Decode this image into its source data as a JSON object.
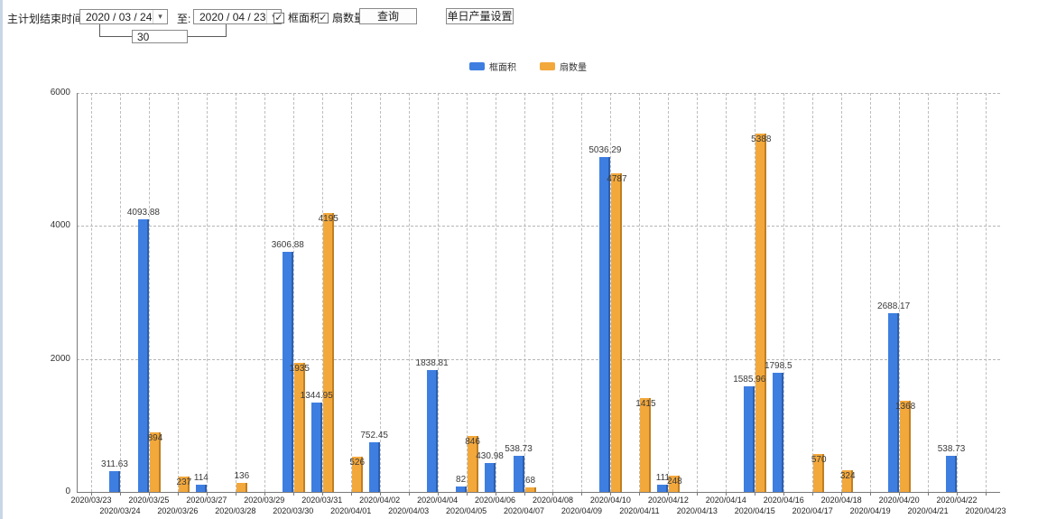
{
  "toolbar": {
    "plan_end_label": "主计划结束时间:",
    "date_from": "2020 / 03 / 24",
    "to_label": "至:",
    "date_to": "2020 / 04 / 23",
    "days_between": "30",
    "checkbox_area_label": "框面积",
    "checkbox_fan_label": "扇数量",
    "checkbox_area_checked": "✓",
    "checkbox_fan_checked": "✓",
    "dropdown_arrow": "▾",
    "query_button": "查询",
    "daily_output_button": "单日产量设置"
  },
  "legend": [
    {
      "label": "框面积",
      "color": "#3e7ee0"
    },
    {
      "label": "扇数量",
      "color": "#f3a83c"
    }
  ],
  "colors": {
    "bar_blue": "#3e7ee0",
    "bar_blue_dark": "#2c5fb0",
    "bar_orange": "#f3a83c",
    "bar_orange_dark": "#c07f22",
    "grid": "#b5b5b5",
    "axis": "#7a7a7a"
  },
  "chart_data": {
    "type": "bar",
    "title": "",
    "xlabel": "",
    "ylabel": "",
    "ylim": [
      0,
      6000
    ],
    "yticks": [
      0,
      2000,
      4000,
      6000
    ],
    "grid": "dashed",
    "legend_position": "top",
    "categories": [
      "2020/03/23",
      "2020/03/24",
      "2020/03/25",
      "2020/03/26",
      "2020/03/27",
      "2020/03/28",
      "2020/03/29",
      "2020/03/30",
      "2020/03/31",
      "2020/04/01",
      "2020/04/02",
      "2020/04/03",
      "2020/04/04",
      "2020/04/05",
      "2020/04/06",
      "2020/04/07",
      "2020/04/08",
      "2020/04/09",
      "2020/04/10",
      "2020/04/11",
      "2020/04/12",
      "2020/04/13",
      "2020/04/14",
      "2020/04/15",
      "2020/04/16",
      "2020/04/17",
      "2020/04/18",
      "2020/04/19",
      "2020/04/20",
      "2020/04/21",
      "2020/04/22",
      "2020/04/23"
    ],
    "series": [
      {
        "name": "框面积",
        "color": "#3e7ee0",
        "color_dark": "#2c5fb0",
        "values": [
          null,
          311.63,
          4093.88,
          null,
          114,
          null,
          null,
          3606.88,
          1344.95,
          null,
          752.45,
          null,
          1838.81,
          82,
          430.98,
          538.73,
          null,
          null,
          5036.29,
          null,
          111,
          null,
          null,
          1585.96,
          1798.5,
          null,
          null,
          null,
          2688.17,
          null,
          538.73,
          null
        ]
      },
      {
        "name": "扇数量",
        "color": "#f3a83c",
        "color_dark": "#c07f22",
        "values": [
          null,
          null,
          894,
          237,
          null,
          136,
          null,
          1935,
          4195,
          526,
          null,
          null,
          null,
          846,
          null,
          68,
          null,
          null,
          4787,
          1415,
          248,
          null,
          null,
          5388,
          null,
          570,
          324,
          null,
          1368,
          null,
          null,
          null
        ]
      }
    ]
  }
}
